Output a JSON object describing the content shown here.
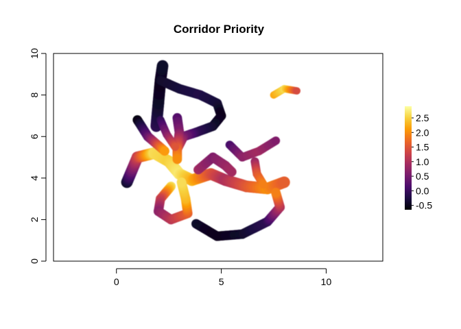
{
  "chart_data": {
    "type": "heatmap",
    "title": "Corridor Priority",
    "xlabel": "",
    "ylabel": "",
    "xlim": [
      -3,
      12.7
    ],
    "ylim": [
      0,
      10
    ],
    "x_ticks": [
      0,
      5,
      10
    ],
    "x_tick_labels": [
      "0",
      "5",
      "10"
    ],
    "y_ticks": [
      0,
      2,
      4,
      6,
      8,
      10
    ],
    "y_tick_labels": [
      "0",
      "2",
      "4",
      "6",
      "8",
      "10"
    ],
    "colorbar": {
      "min": -0.65,
      "max": 2.9,
      "ticks": [
        -0.5,
        0.0,
        0.5,
        1.0,
        1.5,
        2.0,
        2.5
      ],
      "tick_labels": [
        "-0.5",
        "0.0",
        "0.5",
        "1.0",
        "1.5",
        "2.0",
        "2.5"
      ],
      "palette": [
        "#000004",
        "#1b0c41",
        "#4a0c6b",
        "#781c6d",
        "#a52c60",
        "#cf4446",
        "#ed6925",
        "#fb9b06",
        "#f7d13d",
        "#fcffa4"
      ]
    },
    "grid": false,
    "corridors": [
      {
        "points": [
          [
            0.5,
            3.8
          ],
          [
            1.0,
            5.0
          ],
          [
            1.8,
            5.2
          ],
          [
            2.5,
            4.8
          ],
          [
            3.0,
            4.2
          ],
          [
            3.6,
            3.9
          ],
          [
            4.5,
            4.2
          ],
          [
            5.2,
            3.9
          ],
          [
            6.2,
            3.6
          ],
          [
            7.2,
            3.5
          ],
          [
            8.0,
            3.8
          ]
        ],
        "values": [
          -0.4,
          1.2,
          2.6,
          2.5,
          2.7,
          2.3,
          1.5,
          1.0,
          1.5,
          2.0,
          1.6
        ],
        "width": 0.55
      },
      {
        "points": [
          [
            1.9,
            6.5
          ],
          [
            2.0,
            7.6
          ],
          [
            2.1,
            8.7
          ],
          [
            2.2,
            9.4
          ]
        ],
        "values": [
          -0.1,
          -0.4,
          -0.5,
          -0.4
        ],
        "width": 0.55
      },
      {
        "points": [
          [
            2.1,
            8.7
          ],
          [
            3.0,
            8.3
          ],
          [
            4.0,
            8.0
          ],
          [
            4.8,
            7.6
          ],
          [
            5.0,
            7.0
          ],
          [
            4.6,
            6.5
          ],
          [
            3.8,
            6.2
          ],
          [
            3.2,
            6.0
          ],
          [
            2.9,
            5.4
          ]
        ],
        "values": [
          -0.4,
          -0.3,
          -0.2,
          -0.3,
          -0.5,
          -0.4,
          -0.1,
          0.5,
          1.4
        ],
        "width": 0.45
      },
      {
        "points": [
          [
            1.0,
            6.8
          ],
          [
            1.5,
            6.0
          ],
          [
            2.3,
            5.3
          ]
        ],
        "values": [
          -0.6,
          0.3,
          2.1
        ],
        "width": 0.45
      },
      {
        "points": [
          [
            2.9,
            6.9
          ],
          [
            3.0,
            6.2
          ],
          [
            2.9,
            5.4
          ],
          [
            2.9,
            4.9
          ]
        ],
        "values": [
          0.2,
          0.6,
          1.6,
          2.0
        ],
        "width": 0.45
      },
      {
        "points": [
          [
            2.1,
            6.8
          ],
          [
            2.4,
            6.1
          ],
          [
            2.8,
            5.5
          ]
        ],
        "values": [
          -0.1,
          0.6,
          1.5
        ],
        "width": 0.38
      },
      {
        "points": [
          [
            3.9,
            4.4
          ],
          [
            4.6,
            5.0
          ],
          [
            5.2,
            4.6
          ],
          [
            5.5,
            4.3
          ]
        ],
        "values": [
          0.9,
          0.6,
          0.8,
          0.9
        ],
        "width": 0.45
      },
      {
        "points": [
          [
            5.4,
            5.6
          ],
          [
            6.0,
            5.0
          ],
          [
            6.8,
            5.3
          ],
          [
            7.6,
            5.8
          ]
        ],
        "values": [
          0.1,
          0.7,
          0.9,
          0.6
        ],
        "width": 0.4
      },
      {
        "points": [
          [
            6.6,
            4.8
          ],
          [
            6.7,
            4.2
          ],
          [
            7.0,
            3.7
          ]
        ],
        "values": [
          0.8,
          1.5,
          1.9
        ],
        "width": 0.4
      },
      {
        "points": [
          [
            3.8,
            1.8
          ],
          [
            4.8,
            1.2
          ],
          [
            6.0,
            1.3
          ],
          [
            7.2,
            1.9
          ],
          [
            7.8,
            2.6
          ],
          [
            7.6,
            3.3
          ]
        ],
        "values": [
          -0.4,
          -0.5,
          -0.4,
          -0.1,
          1.0,
          1.9
        ],
        "width": 0.45
      },
      {
        "points": [
          [
            2.6,
            3.6
          ],
          [
            2.1,
            3.0
          ],
          [
            2.0,
            2.4
          ],
          [
            2.6,
            2.0
          ],
          [
            3.4,
            2.3
          ],
          [
            3.3,
            3.0
          ],
          [
            3.1,
            3.8
          ]
        ],
        "values": [
          2.6,
          1.3,
          0.7,
          1.1,
          1.6,
          2.3,
          2.6
        ],
        "width": 0.45
      },
      {
        "points": [
          [
            7.5,
            8.0
          ],
          [
            8.0,
            8.3
          ],
          [
            8.6,
            8.2
          ]
        ],
        "values": [
          2.2,
          2.6,
          1.4
        ],
        "width": 0.35
      }
    ]
  }
}
